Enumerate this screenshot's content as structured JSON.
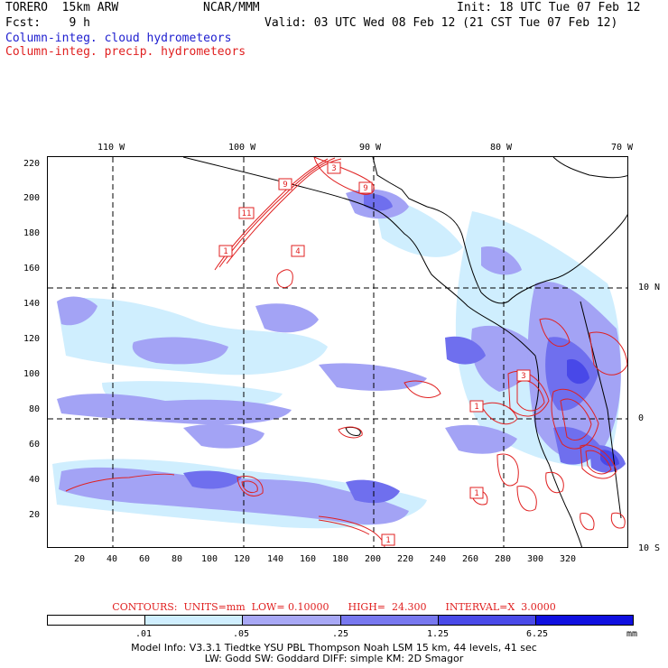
{
  "header": {
    "model": "TORERO  15km ARW",
    "org": "NCAR/MMM",
    "init": "Init: 18 UTC Tue 07 Feb 12",
    "fcst": "Fcst:    9 h",
    "valid": "Valid: 03 UTC Wed 08 Feb 12 (21 CST Tue 07 Feb 12)",
    "field1": "Column-integ. cloud hydrometeors",
    "field2": "Column-integ. precip. hydrometeors"
  },
  "map": {
    "top_lon_labels": [
      "110 W",
      "100 W",
      "90 W",
      "80 W",
      "70 W"
    ],
    "right_lat_labels": [
      "10 N",
      "0",
      "10 S"
    ],
    "y_ticks": [
      "220",
      "200",
      "180",
      "160",
      "140",
      "120",
      "100",
      "80",
      "60",
      "40",
      "20"
    ],
    "x_ticks": [
      "20",
      "40",
      "60",
      "80",
      "100",
      "120",
      "140",
      "160",
      "180",
      "200",
      "220",
      "240",
      "260",
      "280",
      "300",
      "320"
    ],
    "box_labels": [
      "9",
      "3",
      "9",
      "11",
      "1",
      "4",
      "3",
      "1",
      "1",
      "1"
    ],
    "colors": {
      "cloud_light": "#cfeefe",
      "cloud_mid": "#a3a3f5",
      "cloud_dark": "#6f6fee",
      "cloud_darker": "#4848e8",
      "precip_contour": "#e02020",
      "coast": "#000000"
    }
  },
  "legend": {
    "contours": "CONTOURS:  UNITS=mm  LOW= 0.10000      HIGH=  24.300      INTERVAL=X  3.0000",
    "labels": [
      ".01",
      ".05",
      ".25",
      "1.25",
      "6.25"
    ],
    "unit": "mm",
    "colors": [
      "#ffffff",
      "#cfeefe",
      "#a8a8f5",
      "#7878ef",
      "#4a4ae8",
      "#1010e0"
    ]
  },
  "footer": {
    "line1": "Model Info: V3.3.1    Tiedtke YSU PBL  Thompson     Noah LSM  15 km,    44 levels,    41 sec",
    "line2": "LW: Godd SW: Goddard DIFF: simple KM: 2D Smagor"
  }
}
